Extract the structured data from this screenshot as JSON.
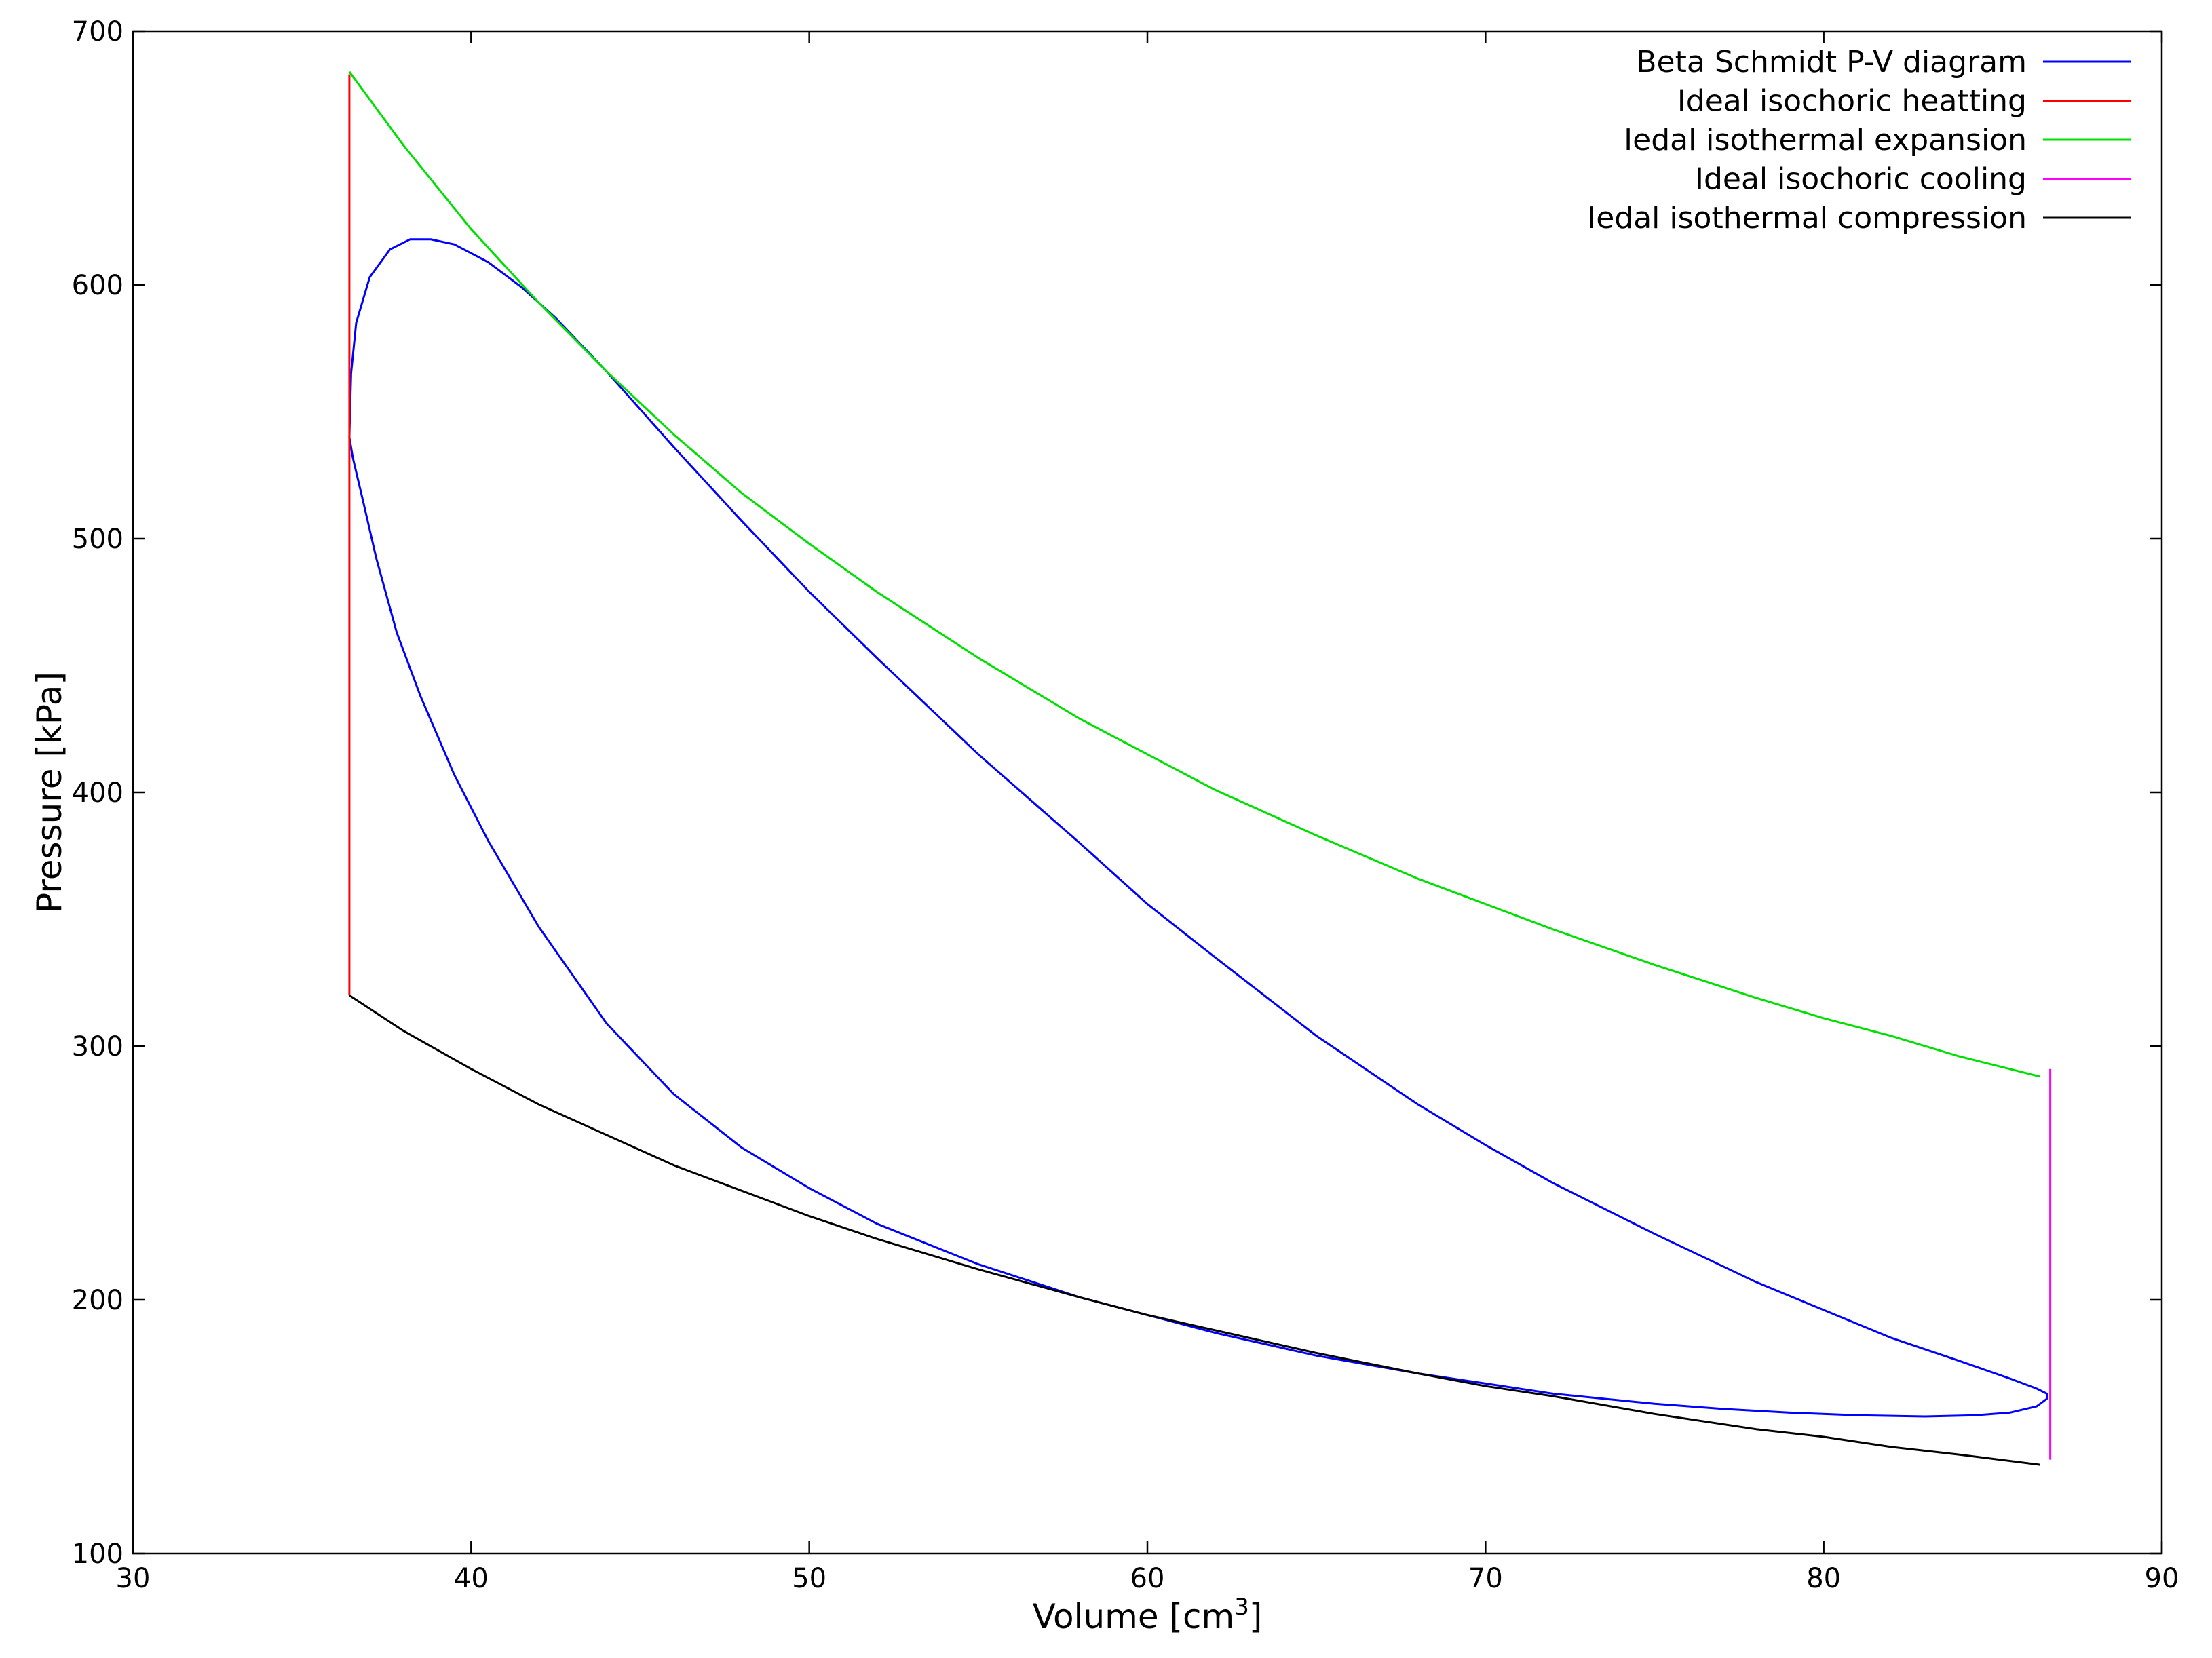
{
  "chart_data": {
    "type": "line",
    "title": "",
    "xlabel": "Volume [cm",
    "xlabel_sup": "3",
    "xlabel_suffix": "]",
    "ylabel": "Pressure [kPa]",
    "xlim": [
      30,
      90
    ],
    "ylim": [
      100,
      700
    ],
    "xticks": [
      30,
      40,
      50,
      60,
      70,
      80,
      90
    ],
    "yticks": [
      100,
      200,
      300,
      400,
      500,
      600,
      700
    ],
    "grid": false,
    "legend_position": "top-right",
    "series": [
      {
        "name": "Beta Schmidt P-V diagram",
        "color": "#0000ff",
        "closed": true,
        "points": [
          [
            36.4,
            540
          ],
          [
            36.45,
            565
          ],
          [
            36.6,
            585
          ],
          [
            37.0,
            603
          ],
          [
            37.6,
            614
          ],
          [
            38.2,
            618
          ],
          [
            38.8,
            618
          ],
          [
            39.5,
            616
          ],
          [
            40.5,
            609
          ],
          [
            41.5,
            599
          ],
          [
            42.5,
            587
          ],
          [
            44,
            566
          ],
          [
            46,
            536
          ],
          [
            48,
            507
          ],
          [
            50,
            479
          ],
          [
            52,
            453
          ],
          [
            55,
            415
          ],
          [
            58,
            380
          ],
          [
            60,
            356
          ],
          [
            62,
            335
          ],
          [
            65,
            304
          ],
          [
            68,
            277
          ],
          [
            70,
            261
          ],
          [
            72,
            246
          ],
          [
            75,
            226
          ],
          [
            78,
            207
          ],
          [
            80,
            196
          ],
          [
            82,
            185
          ],
          [
            84,
            176
          ],
          [
            85.5,
            169
          ],
          [
            86.3,
            165
          ],
          [
            86.6,
            163
          ],
          [
            86.6,
            161
          ],
          [
            86.3,
            158
          ],
          [
            85.5,
            155.5
          ],
          [
            84.5,
            154.5
          ],
          [
            83,
            154
          ],
          [
            81,
            154.5
          ],
          [
            79,
            155.5
          ],
          [
            77,
            157
          ],
          [
            75,
            159
          ],
          [
            72,
            163
          ],
          [
            70,
            167
          ],
          [
            68,
            171
          ],
          [
            65,
            178
          ],
          [
            62,
            187
          ],
          [
            60,
            194
          ],
          [
            58,
            201
          ],
          [
            55,
            214
          ],
          [
            52,
            230
          ],
          [
            50,
            244
          ],
          [
            48,
            260
          ],
          [
            46,
            281
          ],
          [
            44,
            309
          ],
          [
            42,
            347
          ],
          [
            40.5,
            381
          ],
          [
            39.5,
            407
          ],
          [
            38.5,
            438
          ],
          [
            37.8,
            463
          ],
          [
            37.2,
            492
          ],
          [
            36.8,
            515
          ],
          [
            36.5,
            532
          ],
          [
            36.4,
            540
          ]
        ]
      },
      {
        "name": "Ideal isochoric heatting",
        "color": "#ff0000",
        "closed": false,
        "points": [
          [
            36.4,
            320
          ],
          [
            36.4,
            683
          ]
        ]
      },
      {
        "name": "Iedal isothermal expansion",
        "color": "#00e000",
        "closed": false,
        "points": [
          [
            36.4,
            684
          ],
          [
            38,
            655
          ],
          [
            40,
            622
          ],
          [
            42,
            593
          ],
          [
            44,
            566
          ],
          [
            46,
            541
          ],
          [
            48,
            518
          ],
          [
            50,
            498
          ],
          [
            52,
            479
          ],
          [
            55,
            453
          ],
          [
            58,
            429
          ],
          [
            60,
            415
          ],
          [
            62,
            401
          ],
          [
            65,
            383
          ],
          [
            68,
            366
          ],
          [
            70,
            356
          ],
          [
            72,
            346
          ],
          [
            75,
            332
          ],
          [
            78,
            319
          ],
          [
            80,
            311
          ],
          [
            82,
            304
          ],
          [
            84,
            296
          ],
          [
            86.4,
            288
          ]
        ]
      },
      {
        "name": "Ideal isochoric cooling",
        "color": "#ff00ff",
        "closed": false,
        "points": [
          [
            86.7,
            137
          ],
          [
            86.7,
            291
          ]
        ]
      },
      {
        "name": "Iedal isothermal compression",
        "color": "#000000",
        "closed": false,
        "points": [
          [
            36.4,
            320
          ],
          [
            38,
            306
          ],
          [
            40,
            291
          ],
          [
            42,
            277
          ],
          [
            44,
            265
          ],
          [
            46,
            253
          ],
          [
            48,
            243
          ],
          [
            50,
            233
          ],
          [
            52,
            224
          ],
          [
            55,
            212
          ],
          [
            58,
            201
          ],
          [
            60,
            194
          ],
          [
            62,
            188
          ],
          [
            65,
            179
          ],
          [
            68,
            171
          ],
          [
            70,
            166
          ],
          [
            72,
            162
          ],
          [
            75,
            155
          ],
          [
            78,
            149
          ],
          [
            80,
            146
          ],
          [
            82,
            142
          ],
          [
            84,
            139
          ],
          [
            86.4,
            135
          ]
        ]
      }
    ]
  }
}
